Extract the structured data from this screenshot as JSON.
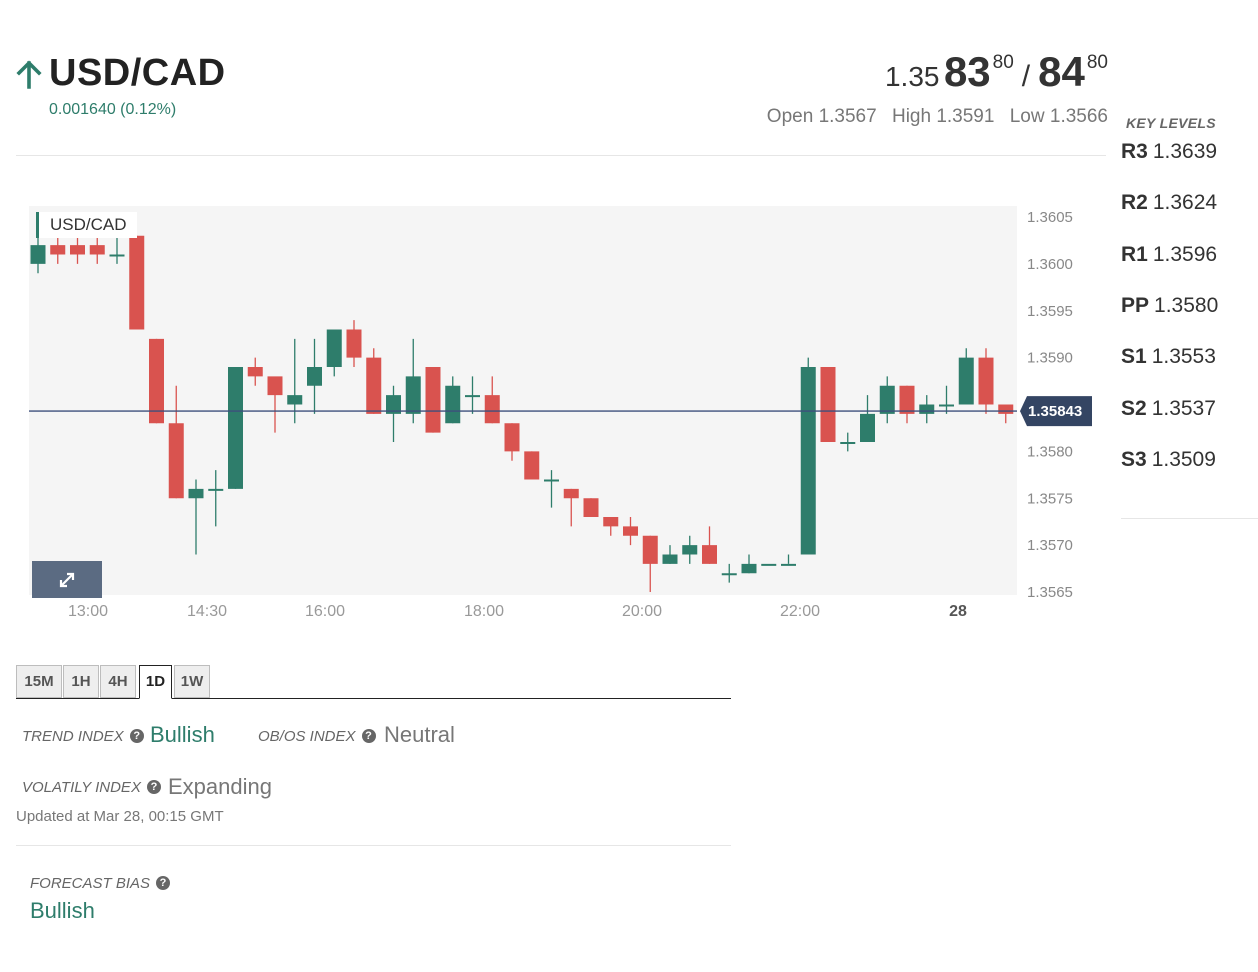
{
  "header": {
    "pair": "USD/CAD",
    "direction_icon": "arrow-up-icon",
    "change": "0.001640 (0.12%)",
    "price": {
      "bid_prefix": "1.35",
      "bid_big": "83",
      "bid_pips": "80",
      "separator": "/",
      "ask_big": "84",
      "ask_pips": "80"
    },
    "open_label": "Open",
    "open": "1.3567",
    "high_label": "High",
    "high": "1.3591",
    "low_label": "Low",
    "low": "1.3566"
  },
  "key_levels": {
    "title": "KEY LEVELS",
    "levels": [
      {
        "name": "R3",
        "value": "1.3639"
      },
      {
        "name": "R2",
        "value": "1.3624"
      },
      {
        "name": "R1",
        "value": "1.3596"
      },
      {
        "name": "PP",
        "value": "1.3580"
      },
      {
        "name": "S1",
        "value": "1.3553"
      },
      {
        "name": "S2",
        "value": "1.3537"
      },
      {
        "name": "S3",
        "value": "1.3509"
      }
    ]
  },
  "chart_data": {
    "type": "candlestick",
    "series_label": "USD/CAD",
    "current_price": 1.35843,
    "current_price_label": "1.35843",
    "ylim": [
      1.3564,
      1.3607
    ],
    "y_ticks": [
      "1.3605",
      "1.3600",
      "1.3595",
      "1.3590",
      "1.3585",
      "1.3580",
      "1.3575",
      "1.3570",
      "1.3565"
    ],
    "x_ticks": [
      "13:00",
      "14:30",
      "16:00",
      "18:00",
      "20:00",
      "22:00",
      "28"
    ],
    "candles": [
      [
        1.36,
        1.3602,
        1.3604,
        1.3599
      ],
      [
        1.3602,
        1.3601,
        1.3605,
        1.36
      ],
      [
        1.3602,
        1.3601,
        1.3603,
        1.36
      ],
      [
        1.3602,
        1.3601,
        1.3604,
        1.36
      ],
      [
        1.3601,
        1.3601,
        1.3603,
        1.36
      ],
      [
        1.3603,
        1.3593,
        1.3603,
        1.3593
      ],
      [
        1.3592,
        1.3583,
        1.3592,
        1.3583
      ],
      [
        1.3583,
        1.3575,
        1.3587,
        1.3575
      ],
      [
        1.3575,
        1.3576,
        1.3577,
        1.3569
      ],
      [
        1.3576,
        1.3576,
        1.3578,
        1.3572
      ],
      [
        1.3576,
        1.3589,
        1.3589,
        1.3576
      ],
      [
        1.3589,
        1.3588,
        1.359,
        1.3587
      ],
      [
        1.3588,
        1.3586,
        1.3587,
        1.3582
      ],
      [
        1.3585,
        1.3586,
        1.3592,
        1.3583
      ],
      [
        1.3587,
        1.3589,
        1.3592,
        1.3584
      ],
      [
        1.3589,
        1.3593,
        1.3593,
        1.3588
      ],
      [
        1.3593,
        1.359,
        1.3594,
        1.3589
      ],
      [
        1.359,
        1.3584,
        1.3591,
        1.3584
      ],
      [
        1.3584,
        1.3586,
        1.3587,
        1.3581
      ],
      [
        1.3584,
        1.3588,
        1.3592,
        1.3583
      ],
      [
        1.3589,
        1.3582,
        1.3589,
        1.3582
      ],
      [
        1.3583,
        1.3587,
        1.3588,
        1.3583
      ],
      [
        1.3586,
        1.3586,
        1.3588,
        1.3584
      ],
      [
        1.3586,
        1.3583,
        1.3588,
        1.3583
      ],
      [
        1.3583,
        1.358,
        1.3583,
        1.3579
      ],
      [
        1.358,
        1.3577,
        1.358,
        1.3577
      ],
      [
        1.3577,
        1.3577,
        1.3578,
        1.3574
      ],
      [
        1.3576,
        1.3575,
        1.3576,
        1.3572
      ],
      [
        1.3575,
        1.3573,
        1.3575,
        1.3573
      ],
      [
        1.3573,
        1.3572,
        1.3573,
        1.3571
      ],
      [
        1.3572,
        1.3571,
        1.3573,
        1.357
      ],
      [
        1.3571,
        1.3568,
        1.3571,
        1.3565
      ],
      [
        1.3568,
        1.3569,
        1.357,
        1.3568
      ],
      [
        1.3569,
        1.357,
        1.3571,
        1.3568
      ],
      [
        1.357,
        1.3568,
        1.3572,
        1.3568
      ],
      [
        1.3567,
        1.3567,
        1.3568,
        1.3566
      ],
      [
        1.3567,
        1.3568,
        1.3569,
        1.3567
      ],
      [
        1.3568,
        1.3568,
        1.3568,
        1.3568
      ],
      [
        1.3568,
        1.3568,
        1.3569,
        1.3568
      ],
      [
        1.3569,
        1.3589,
        1.359,
        1.3569
      ],
      [
        1.3589,
        1.3581,
        1.3589,
        1.3581
      ],
      [
        1.3581,
        1.3581,
        1.3582,
        1.358
      ],
      [
        1.3581,
        1.3584,
        1.3586,
        1.3581
      ],
      [
        1.3584,
        1.3587,
        1.3588,
        1.3583
      ],
      [
        1.3587,
        1.3584,
        1.3587,
        1.3583
      ],
      [
        1.3584,
        1.3585,
        1.3586,
        1.3583
      ],
      [
        1.3585,
        1.3585,
        1.3587,
        1.3584
      ],
      [
        1.3585,
        1.359,
        1.3591,
        1.3585
      ],
      [
        1.359,
        1.3585,
        1.3591,
        1.3584
      ],
      [
        1.3585,
        1.3584,
        1.3585,
        1.3583
      ]
    ],
    "colors": {
      "up": "#2e7d6b",
      "down": "#d9534f",
      "price_line": "#3d4f7c",
      "price_tag": "#344563"
    }
  },
  "timeframes": {
    "tabs": [
      "15M",
      "1H",
      "4H",
      "1D",
      "1W"
    ],
    "active": "1D"
  },
  "indices": {
    "trend_label": "TREND INDEX",
    "trend_value": "Bullish",
    "obos_label": "OB/OS INDEX",
    "obos_value": "Neutral",
    "volatility_label": "VOLATILY INDEX",
    "volatility_value": "Expanding",
    "help_icon": "question-circle-icon",
    "updated": "Updated at Mar 28, 00:15 GMT"
  },
  "forecast": {
    "label": "FORECAST BIAS",
    "value": "Bullish"
  },
  "expand_icon": "expand-arrows-icon"
}
